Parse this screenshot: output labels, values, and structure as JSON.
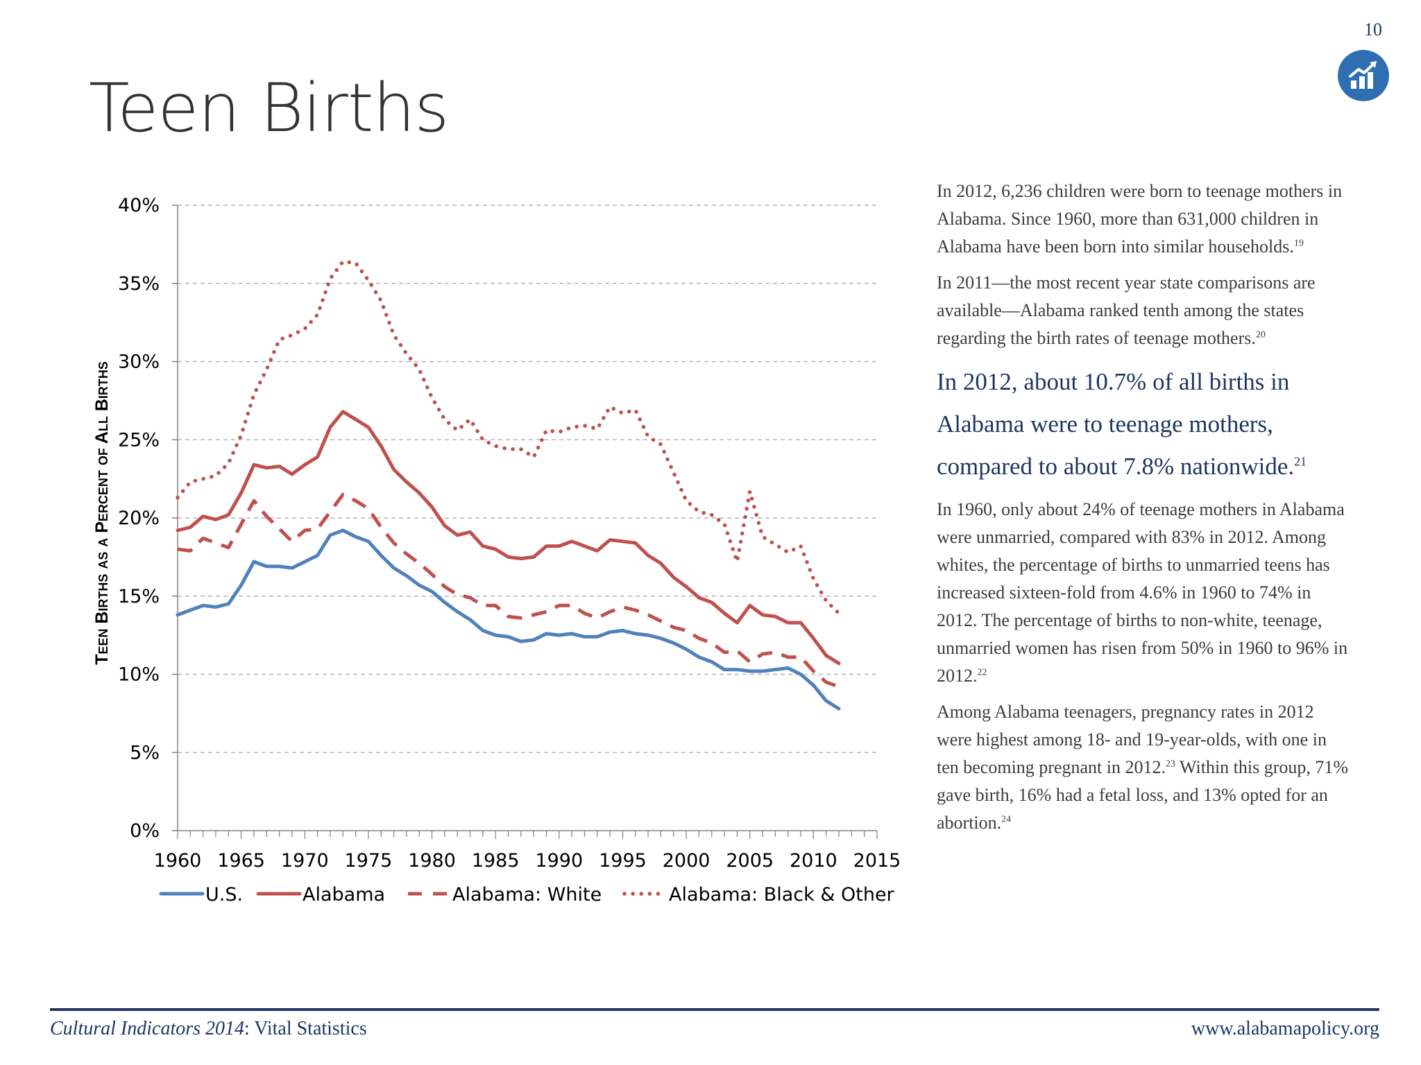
{
  "header": {
    "page_number": "10",
    "title": "Teen Births",
    "icon": "bar-chart-trend-icon",
    "badge_color": "#2f6fb1"
  },
  "chart_data": {
    "type": "line",
    "title": "",
    "xlabel": "",
    "ylabel": "Teen Births as a Percent of All Births",
    "xlim": [
      1960,
      2015
    ],
    "ylim": [
      0,
      40
    ],
    "x_ticks": [
      "1960",
      "1965",
      "1970",
      "1975",
      "1980",
      "1985",
      "1990",
      "1995",
      "2000",
      "2005",
      "2010",
      "2015"
    ],
    "y_ticks": [
      "0%",
      "5%",
      "10%",
      "15%",
      "20%",
      "25%",
      "30%",
      "35%",
      "40%"
    ],
    "grid": "horizontal dashed",
    "legend_position": "bottom",
    "x": [
      1960,
      1961,
      1962,
      1963,
      1964,
      1965,
      1966,
      1967,
      1968,
      1969,
      1970,
      1971,
      1972,
      1973,
      1974,
      1975,
      1976,
      1977,
      1978,
      1979,
      1980,
      1981,
      1982,
      1983,
      1984,
      1985,
      1986,
      1987,
      1988,
      1989,
      1990,
      1991,
      1992,
      1993,
      1994,
      1995,
      1996,
      1997,
      1998,
      1999,
      2000,
      2001,
      2002,
      2003,
      2004,
      2005,
      2006,
      2007,
      2008,
      2009,
      2010,
      2011,
      2012
    ],
    "series": [
      {
        "name": "U.S.",
        "color": "#4f81bd",
        "style": "solid",
        "values": [
          13.8,
          14.1,
          14.4,
          14.3,
          14.5,
          15.7,
          17.2,
          16.9,
          16.9,
          16.8,
          17.2,
          17.6,
          18.9,
          19.2,
          18.8,
          18.5,
          17.6,
          16.8,
          16.3,
          15.7,
          15.3,
          14.6,
          14.0,
          13.5,
          12.8,
          12.5,
          12.4,
          12.1,
          12.2,
          12.6,
          12.5,
          12.6,
          12.4,
          12.4,
          12.7,
          12.8,
          12.6,
          12.5,
          12.3,
          12.0,
          11.6,
          11.1,
          10.8,
          10.3,
          10.3,
          10.2,
          10.2,
          10.3,
          10.4,
          10.0,
          9.3,
          8.3,
          7.8
        ]
      },
      {
        "name": "Alabama",
        "color": "#c0504d",
        "style": "solid",
        "values": [
          19.2,
          19.4,
          20.1,
          19.9,
          20.2,
          21.6,
          23.4,
          23.2,
          23.3,
          22.8,
          23.4,
          23.9,
          25.8,
          26.8,
          26.3,
          25.8,
          24.6,
          23.1,
          22.3,
          21.6,
          20.7,
          19.5,
          18.9,
          19.1,
          18.2,
          18.0,
          17.5,
          17.4,
          17.5,
          18.2,
          18.2,
          18.5,
          18.2,
          17.9,
          18.6,
          18.5,
          18.4,
          17.6,
          17.1,
          16.2,
          15.6,
          14.9,
          14.6,
          13.9,
          13.3,
          14.4,
          13.8,
          13.7,
          13.3,
          13.3,
          12.3,
          11.2,
          10.7
        ]
      },
      {
        "name": "Alabama: White",
        "color": "#c0504d",
        "style": "dashed",
        "values": [
          18.0,
          17.9,
          18.7,
          18.4,
          18.1,
          19.6,
          21.1,
          20.1,
          19.3,
          18.5,
          19.2,
          19.3,
          20.4,
          21.5,
          21.1,
          20.6,
          19.4,
          18.4,
          17.7,
          17.1,
          16.4,
          15.6,
          15.1,
          14.9,
          14.4,
          14.4,
          13.7,
          13.6,
          13.8,
          14.0,
          14.4,
          14.4,
          13.9,
          13.6,
          14.0,
          14.3,
          14.1,
          13.8,
          13.4,
          13.0,
          12.8,
          12.3,
          12.0,
          11.4,
          11.5,
          10.8,
          11.3,
          11.4,
          11.1,
          11.1,
          10.2,
          9.5,
          9.2
        ]
      },
      {
        "name": "Alabama: Black & Other",
        "color": "#c0504d",
        "style": "dotted",
        "values": [
          21.3,
          22.3,
          22.5,
          22.7,
          23.5,
          25.3,
          27.9,
          29.5,
          31.4,
          31.7,
          32.1,
          33.0,
          35.3,
          36.4,
          36.3,
          35.2,
          33.9,
          31.7,
          30.5,
          29.5,
          27.7,
          26.3,
          25.6,
          26.3,
          25.0,
          24.6,
          24.4,
          24.4,
          23.9,
          25.6,
          25.5,
          25.8,
          25.9,
          25.7,
          27.1,
          26.7,
          26.9,
          25.2,
          24.7,
          22.9,
          21.1,
          20.4,
          20.2,
          19.6,
          17.2,
          21.7,
          18.8,
          18.3,
          17.8,
          18.2,
          16.1,
          14.7,
          13.9
        ]
      }
    ]
  },
  "text": {
    "p1": {
      "text": "In 2012, 6,236 children were born to teenage mothers in Alabama.  Since 1960, more than 631,000 children in Alabama have been born into similar households.",
      "ref": "19"
    },
    "p2": {
      "text": "In 2011—the most recent year state comparisons are available—Alabama ranked tenth among the states regarding the birth rates of teenage mothers.",
      "ref": "20"
    },
    "callout": {
      "text": "In 2012, about 10.7% of all births in Alabama were to teenage mothers, compared to about 7.8% nationwide.",
      "ref": "21"
    },
    "p3": {
      "text": "In 1960, only about 24% of teenage mothers in Alabama were unmarried, compared with 83% in 2012.  Among whites, the percentage of births to unmarried teens has increased sixteen-fold from 4.6% in 1960 to 74% in 2012.  The percentage of births to non-white, teenage, unmarried women has risen from 50% in 1960 to 96% in 2012.",
      "ref": "22"
    },
    "p4a": {
      "text": "Among Alabama teenagers, pregnancy rates in 2012 were highest among 18- and 19-year-olds, with one in ten becoming pregnant in 2012.",
      "ref": "23"
    },
    "p4b": {
      "text": "Within this group, 71% gave birth, 16% had a fetal loss, and 13% opted for an abortion.",
      "ref": "24"
    }
  },
  "footer": {
    "left_italic": "Cultural Indicators 2014",
    "left_rest": ": Vital Statistics",
    "right": "www.alabamapolicy.org",
    "rule_color": "#1f3561"
  }
}
